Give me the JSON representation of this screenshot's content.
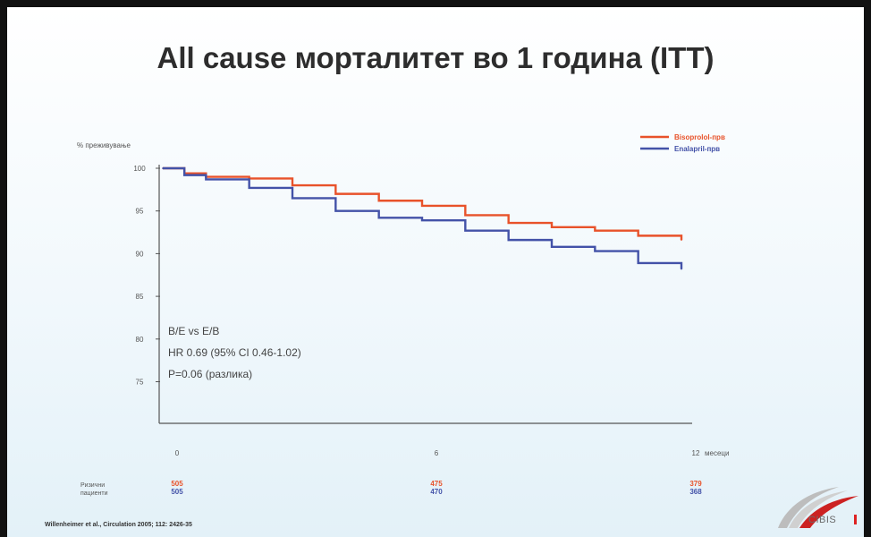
{
  "slide": {
    "title": "All cause морталитет во 1 година (ITT)",
    "stats_text": [
      "B/E vs E/B",
      "HR 0.69 (95% CI 0.46-1.02)",
      "P=0.06 (разлика)"
    ],
    "risk_table": {
      "row_label_lines": [
        "Ризични",
        "пациенти"
      ],
      "values": [
        {
          "month": 0,
          "bisoprolol": "505",
          "enalapril": "505"
        },
        {
          "month": 6,
          "bisoprolol": "475",
          "enalapril": "470"
        },
        {
          "month": 12,
          "bisoprolol": "379",
          "enalapril": "368"
        }
      ]
    },
    "citation": "Willenheimer et al., Circulation 2005; 112: 2426-35",
    "logo_text": "CIBIS",
    "logo_icon": "cibis-swoosh-logo"
  },
  "colors": {
    "bisoprolol": "#e8522a",
    "enalapril": "#4352a8",
    "accent": "#cc2222"
  },
  "chart_data": {
    "type": "line",
    "title": "",
    "ylabel": "% преживување",
    "xlabel": "месеци",
    "xlim": [
      0,
      12
    ],
    "ylim": [
      70,
      100
    ],
    "xticks": [
      0,
      6,
      12
    ],
    "yticks": [
      100,
      95,
      90,
      85,
      80,
      75
    ],
    "legend_position": "top-right",
    "series": [
      {
        "name": "Bisoprolol-прв",
        "x": [
          0,
          0.5,
          1,
          2,
          3,
          4,
          5,
          6,
          7,
          8,
          9,
          10,
          11,
          12
        ],
        "y": [
          100,
          99.4,
          99,
          98.8,
          98,
          97,
          96.2,
          95.6,
          94.5,
          93.6,
          93.1,
          92.7,
          92.1,
          91.6
        ]
      },
      {
        "name": "Enalapril-прв",
        "x": [
          0,
          0.5,
          1,
          2,
          3,
          4,
          5,
          6,
          7,
          8,
          9,
          10,
          11,
          12
        ],
        "y": [
          100,
          99.2,
          98.7,
          97.7,
          96.5,
          95,
          94.2,
          93.9,
          92.7,
          91.6,
          90.8,
          90.3,
          88.9,
          88.2
        ]
      }
    ]
  }
}
